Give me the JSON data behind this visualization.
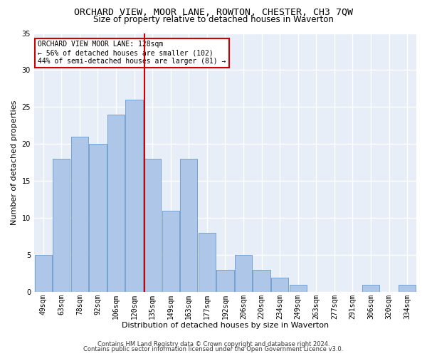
{
  "title": "ORCHARD VIEW, MOOR LANE, ROWTON, CHESTER, CH3 7QW",
  "subtitle": "Size of property relative to detached houses in Waverton",
  "xlabel": "Distribution of detached houses by size in Waverton",
  "ylabel": "Number of detached properties",
  "categories": [
    "49sqm",
    "63sqm",
    "78sqm",
    "92sqm",
    "106sqm",
    "120sqm",
    "135sqm",
    "149sqm",
    "163sqm",
    "177sqm",
    "192sqm",
    "206sqm",
    "220sqm",
    "234sqm",
    "249sqm",
    "263sqm",
    "277sqm",
    "291sqm",
    "306sqm",
    "320sqm",
    "334sqm"
  ],
  "values": [
    5,
    18,
    21,
    20,
    24,
    26,
    18,
    11,
    18,
    8,
    3,
    5,
    3,
    2,
    1,
    0,
    0,
    0,
    1,
    0,
    1
  ],
  "bar_color": "#aec6e8",
  "bar_edge_color": "#6699cc",
  "vline_color": "#cc0000",
  "annotation_text": "ORCHARD VIEW MOOR LANE: 128sqm\n← 56% of detached houses are smaller (102)\n44% of semi-detached houses are larger (81) →",
  "annotation_box_color": "#ffffff",
  "annotation_box_edge": "#cc0000",
  "ylim": [
    0,
    35
  ],
  "yticks": [
    0,
    5,
    10,
    15,
    20,
    25,
    30,
    35
  ],
  "footer1": "Contains HM Land Registry data © Crown copyright and database right 2024.",
  "footer2": "Contains public sector information licensed under the Open Government Licence v3.0.",
  "bg_color": "#e8eef8",
  "grid_color": "#ffffff",
  "title_fontsize": 9.5,
  "subtitle_fontsize": 8.5,
  "label_fontsize": 8,
  "tick_fontsize": 7,
  "footer_fontsize": 6,
  "annot_fontsize": 7
}
